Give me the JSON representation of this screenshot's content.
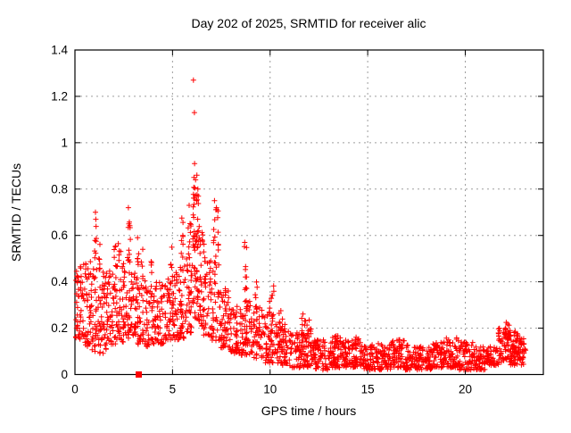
{
  "page": {
    "background": "#ffffff"
  },
  "chart_data": {
    "type": "scatter",
    "title": "Day 202 of 2025, SRMTID for receiver alic",
    "xlabel": "GPS time / hours",
    "ylabel": "SRMTID / TECUs",
    "xlim": [
      0,
      24
    ],
    "ylim": [
      0,
      1.4
    ],
    "xticks": [
      0,
      5,
      10,
      15,
      20
    ],
    "xtick_labels": [
      "0",
      "5",
      "10",
      "15",
      "20"
    ],
    "yticks": [
      0,
      0.2,
      0.4,
      0.6,
      0.8,
      1.0,
      1.2,
      1.4
    ],
    "ytick_labels": [
      "0",
      "0.2",
      "0.4",
      "0.6",
      "0.8",
      "1",
      "1.2",
      "1.4"
    ],
    "grid": true,
    "legend": "none",
    "marker": {
      "shape": "plus",
      "color": "#ff0000",
      "size": 7
    },
    "series2": {
      "name": "square-marker-series",
      "shape": "filled-square",
      "color": "#ff0000",
      "points": [
        [
          3.27,
          0.0
        ]
      ]
    },
    "seed": 20250722,
    "clusters": [
      [
        0.0,
        0.35,
        0.15,
        0.47,
        40
      ],
      [
        0.35,
        0.8,
        0.12,
        0.5,
        48
      ],
      [
        0.8,
        1.15,
        0.1,
        0.46,
        36
      ],
      [
        1.15,
        1.6,
        0.09,
        0.48,
        48
      ],
      [
        1.6,
        2.1,
        0.13,
        0.45,
        52
      ],
      [
        2.1,
        2.6,
        0.14,
        0.5,
        52
      ],
      [
        2.6,
        3.1,
        0.15,
        0.45,
        50
      ],
      [
        3.1,
        3.6,
        0.13,
        0.42,
        46
      ],
      [
        3.6,
        4.1,
        0.12,
        0.38,
        46
      ],
      [
        4.1,
        4.7,
        0.13,
        0.4,
        55
      ],
      [
        4.7,
        5.2,
        0.15,
        0.44,
        55
      ],
      [
        5.2,
        5.7,
        0.15,
        0.48,
        50
      ],
      [
        5.7,
        6.0,
        0.18,
        0.52,
        34
      ],
      [
        6.0,
        6.45,
        0.22,
        0.65,
        60,
        1
      ],
      [
        6.45,
        7.0,
        0.16,
        0.52,
        50
      ],
      [
        7.0,
        7.45,
        0.14,
        0.55,
        44
      ],
      [
        7.45,
        7.9,
        0.11,
        0.38,
        48
      ],
      [
        7.9,
        8.5,
        0.09,
        0.3,
        55
      ],
      [
        8.5,
        9.0,
        0.08,
        0.33,
        48
      ],
      [
        9.0,
        9.6,
        0.07,
        0.3,
        55
      ],
      [
        9.6,
        10.3,
        0.05,
        0.26,
        60
      ],
      [
        10.3,
        11.0,
        0.04,
        0.22,
        62
      ],
      [
        11.0,
        11.7,
        0.03,
        0.18,
        60
      ],
      [
        11.7,
        12.2,
        0.03,
        0.2,
        48
      ],
      [
        12.2,
        13.0,
        0.02,
        0.15,
        70
      ],
      [
        13.0,
        13.6,
        0.03,
        0.17,
        55
      ],
      [
        13.6,
        14.2,
        0.03,
        0.15,
        55
      ],
      [
        14.2,
        14.8,
        0.03,
        0.16,
        55
      ],
      [
        14.8,
        15.5,
        0.02,
        0.13,
        60
      ],
      [
        15.5,
        16.2,
        0.02,
        0.14,
        60
      ],
      [
        16.2,
        16.9,
        0.03,
        0.15,
        60
      ],
      [
        16.9,
        17.6,
        0.02,
        0.13,
        62
      ],
      [
        17.6,
        18.3,
        0.02,
        0.12,
        62
      ],
      [
        18.3,
        19.0,
        0.03,
        0.14,
        62
      ],
      [
        19.0,
        19.7,
        0.03,
        0.16,
        60
      ],
      [
        19.7,
        20.4,
        0.02,
        0.14,
        58
      ],
      [
        20.4,
        21.1,
        0.02,
        0.12,
        58
      ],
      [
        21.1,
        21.7,
        0.04,
        0.12,
        45
      ],
      [
        21.7,
        22.3,
        0.05,
        0.2,
        60,
        1
      ],
      [
        22.3,
        22.75,
        0.04,
        0.17,
        50
      ],
      [
        22.75,
        23.1,
        0.04,
        0.16,
        35
      ],
      [
        0.98,
        1.12,
        0.48,
        0.7,
        8,
        1
      ],
      [
        1.2,
        1.3,
        0.45,
        0.6,
        5,
        1
      ],
      [
        2.0,
        2.1,
        0.46,
        0.57,
        5,
        1
      ],
      [
        2.2,
        2.35,
        0.48,
        0.58,
        5,
        1
      ],
      [
        2.68,
        2.85,
        0.45,
        0.73,
        12,
        1
      ],
      [
        3.15,
        3.3,
        0.45,
        0.6,
        6,
        1
      ],
      [
        3.4,
        3.5,
        0.4,
        0.56,
        5,
        1
      ],
      [
        3.9,
        4.0,
        0.36,
        0.5,
        5,
        1
      ],
      [
        4.85,
        5.0,
        0.42,
        0.55,
        5,
        1
      ],
      [
        5.45,
        5.6,
        0.46,
        0.68,
        8,
        1
      ],
      [
        5.8,
        5.95,
        0.5,
        0.72,
        8,
        1
      ],
      [
        6.05,
        6.35,
        0.65,
        0.88,
        16,
        1
      ],
      [
        6.5,
        6.65,
        0.5,
        0.62,
        6,
        1
      ],
      [
        7.1,
        7.35,
        0.55,
        0.75,
        12,
        1
      ],
      [
        8.6,
        8.8,
        0.32,
        0.56,
        9,
        1
      ],
      [
        9.2,
        9.35,
        0.28,
        0.4,
        6,
        1
      ],
      [
        9.95,
        10.2,
        0.24,
        0.4,
        9,
        1
      ],
      [
        10.45,
        10.65,
        0.2,
        0.3,
        6,
        1
      ],
      [
        11.6,
        12.1,
        0.15,
        0.27,
        12,
        1
      ],
      [
        13.25,
        13.4,
        0.13,
        0.18,
        5,
        1
      ],
      [
        14.35,
        14.5,
        0.12,
        0.17,
        5,
        1
      ],
      [
        22.0,
        22.25,
        0.15,
        0.22,
        10,
        1
      ],
      [
        22.5,
        22.7,
        0.14,
        0.2,
        6,
        1
      ]
    ],
    "outliers": [
      [
        6.07,
        1.27
      ],
      [
        6.12,
        1.13
      ],
      [
        6.13,
        0.91
      ],
      [
        6.1,
        0.85
      ],
      [
        6.18,
        0.84
      ],
      [
        6.25,
        0.86
      ],
      [
        6.3,
        0.8
      ],
      [
        2.74,
        0.72
      ],
      [
        1.05,
        0.7
      ],
      [
        5.85,
        0.73
      ],
      [
        7.15,
        0.75
      ],
      [
        7.25,
        0.72
      ],
      [
        8.7,
        0.57
      ],
      [
        22.1,
        0.225
      ],
      [
        12.0,
        0.235
      ]
    ]
  }
}
